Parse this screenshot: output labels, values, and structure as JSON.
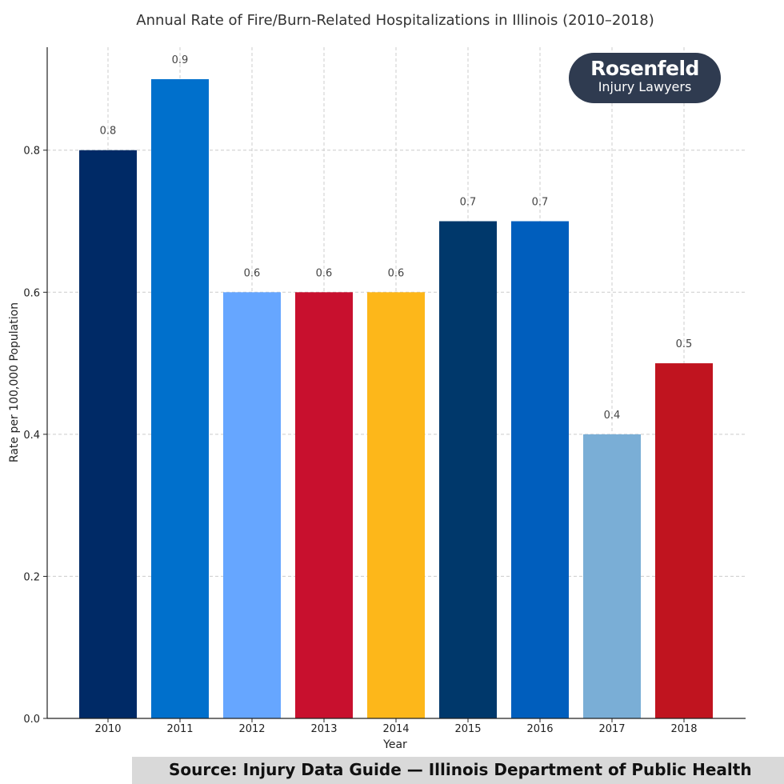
{
  "chart_data": {
    "type": "bar",
    "title": "Annual Rate of Fire/Burn-Related Hospitalizations in Illinois (2010–2018)",
    "xlabel": "Year",
    "ylabel": "Rate per 100,000 Population",
    "categories": [
      "2010",
      "2011",
      "2012",
      "2013",
      "2014",
      "2015",
      "2016",
      "2017",
      "2018"
    ],
    "values": [
      0.8,
      0.9,
      0.6,
      0.6,
      0.6,
      0.7,
      0.7,
      0.4,
      0.5
    ],
    "value_labels": [
      "0.8",
      "0.9",
      "0.6",
      "0.6",
      "0.6",
      "0.7",
      "0.7",
      "0.4",
      "0.5"
    ],
    "colors": [
      "#002a66",
      "#0070cc",
      "#66a6ff",
      "#c8102e",
      "#fdb71a",
      "#00386b",
      "#005ebd",
      "#7aaed6",
      "#c0141f"
    ],
    "ylim": [
      0,
      0.945
    ],
    "yticks": [
      0.0,
      0.2,
      0.4,
      0.6,
      0.8
    ],
    "ytick_labels": [
      "0.0",
      "0.2",
      "0.4",
      "0.6",
      "0.8"
    ],
    "grid": true
  },
  "logo": {
    "name": "Rosenfeld",
    "tagline": "Injury Lawyers"
  },
  "source": "Source: Injury Data Guide — Illinois Department of Public Health"
}
